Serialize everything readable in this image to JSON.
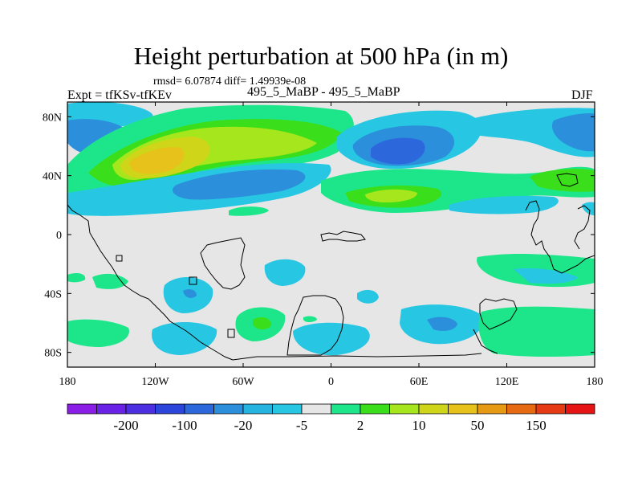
{
  "chart_data": {
    "type": "heatmap",
    "title": "Height perturbation at 500 hPa (in m)",
    "stats": "rmsd= 6.07874 diff= 1.49939e-08",
    "left_label": "Expt = tfKSv-tfKEv",
    "center_label": "495_5_MaBP - 495_5_MaBP",
    "right_label": "DJF",
    "x_ticks": [
      {
        "value": -180,
        "label": "180"
      },
      {
        "value": -120,
        "label": "120W"
      },
      {
        "value": -60,
        "label": "60W"
      },
      {
        "value": 0,
        "label": "0"
      },
      {
        "value": 60,
        "label": "60E"
      },
      {
        "value": 120,
        "label": "120E"
      },
      {
        "value": 180,
        "label": "180"
      }
    ],
    "y_ticks": [
      {
        "value": 80,
        "label": "80N"
      },
      {
        "value": 40,
        "label": "40N"
      },
      {
        "value": 0,
        "label": "0"
      },
      {
        "value": -40,
        "label": "40S"
      },
      {
        "value": -80,
        "label": "80S"
      }
    ],
    "xlim": [
      -180,
      180
    ],
    "ylim": [
      -90,
      90
    ],
    "colorbar": {
      "colors": [
        "#8a1de6",
        "#6a22e6",
        "#4b2fe0",
        "#2c46dc",
        "#2c68dc",
        "#2b8fdc",
        "#25b4e0",
        "#27c6e2",
        "#e6e6e6",
        "#1de68a",
        "#3ade1a",
        "#a6e61d",
        "#cfd61a",
        "#e6c21a",
        "#e69a14",
        "#e66a12",
        "#e63a14",
        "#e61414"
      ],
      "labels": [
        {
          "value": "-200",
          "after_index": 1
        },
        {
          "value": "-100",
          "after_index": 3
        },
        {
          "value": "-20",
          "after_index": 5
        },
        {
          "value": "-5",
          "after_index": 7
        },
        {
          "value": "2",
          "after_index": 9
        },
        {
          "value": "10",
          "after_index": 11
        },
        {
          "value": "50",
          "after_index": 13
        },
        {
          "value": "150",
          "after_index": 15
        }
      ]
    }
  }
}
